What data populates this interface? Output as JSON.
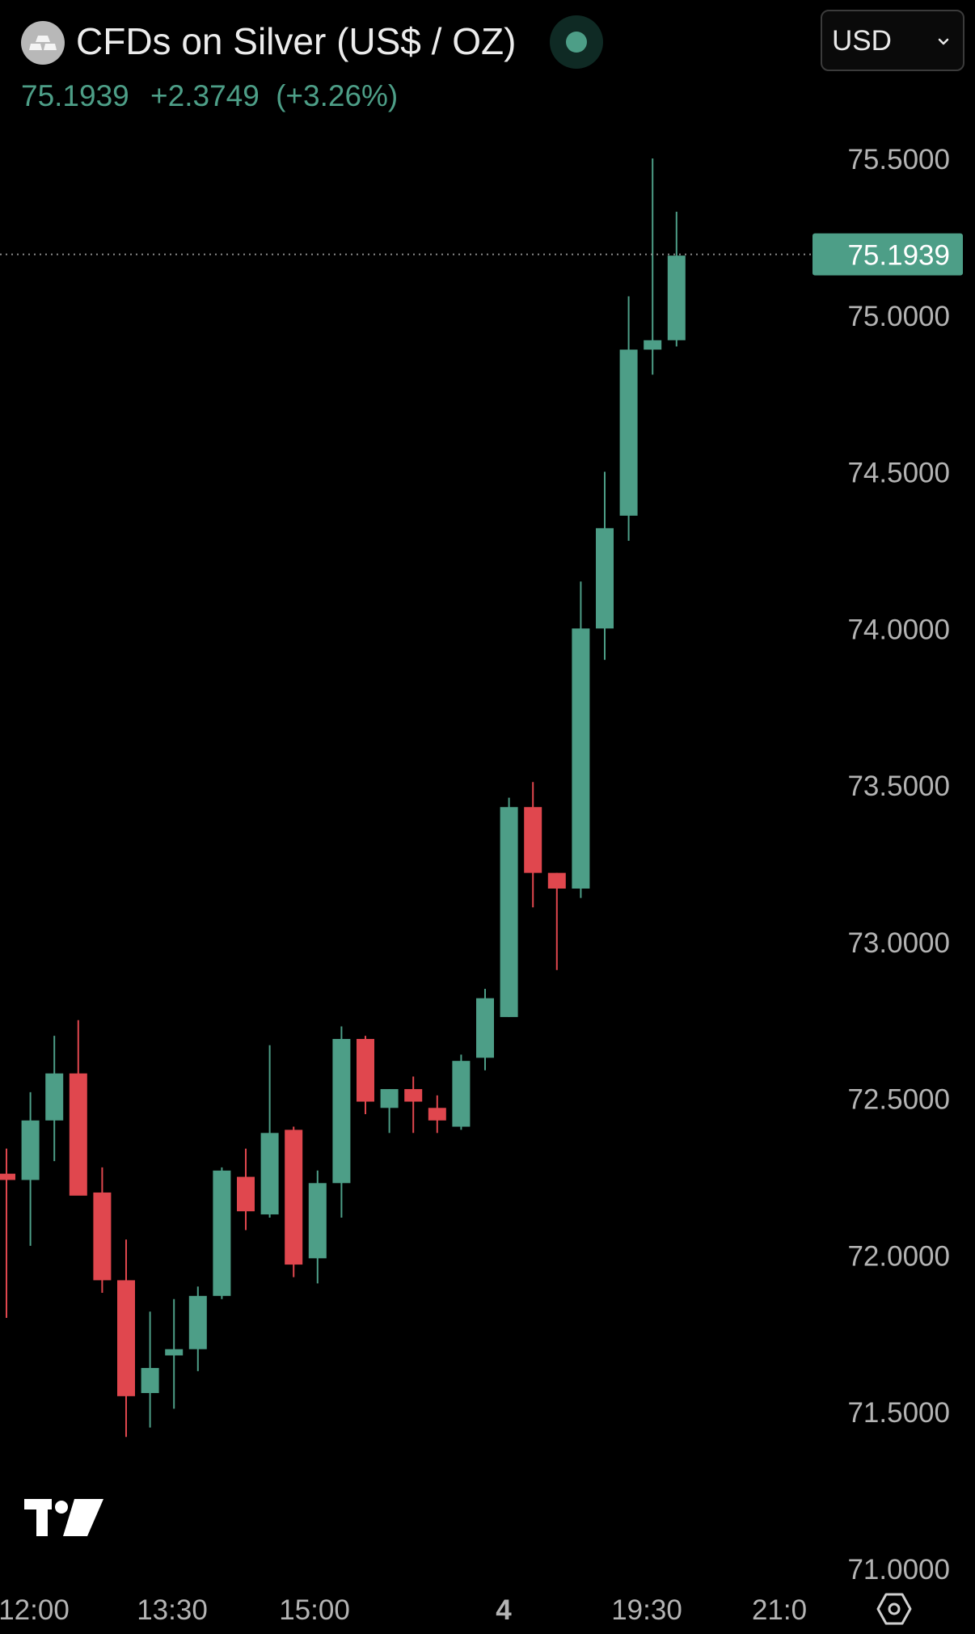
{
  "header": {
    "title": "CFDs on Silver (US$ / OZ)",
    "last_price": "75.1939",
    "change": "+2.3749",
    "change_pct": "(+3.26%)",
    "currency": "USD",
    "status_color": "#4d9e87"
  },
  "icons": {
    "symbol_logo": "silver-bars-icon",
    "currency_chevron": "chevron-down-icon",
    "settings": "settings-icon",
    "brand_logo": "tradingview-logo"
  },
  "colors": {
    "up": "#4d9e87",
    "down": "#e0474e",
    "background": "#000000",
    "axis_text": "#b3b3b3"
  },
  "chart_data": {
    "type": "candlestick",
    "ylim": [
      71.0,
      75.5
    ],
    "y_ticks": [
      "75.5000",
      "75.0000",
      "74.5000",
      "74.0000",
      "73.5000",
      "73.0000",
      "72.5000",
      "72.0000",
      "71.5000",
      "71.0000"
    ],
    "x_ticks": [
      "12:00",
      "13:30",
      "15:00",
      "4",
      "19:30",
      "21:0"
    ],
    "last_price": 75.1939,
    "last_price_label": "75.1939",
    "candles": [
      {
        "open": 72.26,
        "high": 72.34,
        "low": 71.8,
        "close": 72.24
      },
      {
        "open": 72.24,
        "high": 72.52,
        "low": 72.03,
        "close": 72.43
      },
      {
        "open": 72.43,
        "high": 72.7,
        "low": 72.3,
        "close": 72.58
      },
      {
        "open": 72.58,
        "high": 72.75,
        "low": 72.2,
        "close": 72.19
      },
      {
        "open": 72.2,
        "high": 72.28,
        "low": 71.88,
        "close": 71.92
      },
      {
        "open": 71.92,
        "high": 72.05,
        "low": 71.42,
        "close": 71.55
      },
      {
        "open": 71.56,
        "high": 71.82,
        "low": 71.45,
        "close": 71.64
      },
      {
        "open": 71.68,
        "high": 71.86,
        "low": 71.51,
        "close": 71.7
      },
      {
        "open": 71.7,
        "high": 71.9,
        "low": 71.63,
        "close": 71.87
      },
      {
        "open": 71.87,
        "high": 72.28,
        "low": 71.86,
        "close": 72.27
      },
      {
        "open": 72.25,
        "high": 72.34,
        "low": 72.08,
        "close": 72.14
      },
      {
        "open": 72.13,
        "high": 72.67,
        "low": 72.12,
        "close": 72.39
      },
      {
        "open": 72.4,
        "high": 72.41,
        "low": 71.93,
        "close": 71.97
      },
      {
        "open": 71.99,
        "high": 72.27,
        "low": 71.91,
        "close": 72.23
      },
      {
        "open": 72.23,
        "high": 72.73,
        "low": 72.12,
        "close": 72.69
      },
      {
        "open": 72.69,
        "high": 72.7,
        "low": 72.45,
        "close": 72.49
      },
      {
        "open": 72.47,
        "high": 72.53,
        "low": 72.39,
        "close": 72.53
      },
      {
        "open": 72.53,
        "high": 72.57,
        "low": 72.39,
        "close": 72.49
      },
      {
        "open": 72.47,
        "high": 72.51,
        "low": 72.39,
        "close": 72.43
      },
      {
        "open": 72.41,
        "high": 72.64,
        "low": 72.4,
        "close": 72.62
      },
      {
        "open": 72.63,
        "high": 72.85,
        "low": 72.59,
        "close": 72.82
      },
      {
        "open": 72.76,
        "high": 73.46,
        "low": 72.76,
        "close": 73.43
      },
      {
        "open": 73.43,
        "high": 73.51,
        "low": 73.11,
        "close": 73.22
      },
      {
        "open": 73.22,
        "high": 73.22,
        "low": 72.91,
        "close": 73.17
      },
      {
        "open": 73.17,
        "high": 74.15,
        "low": 73.14,
        "close": 74.0
      },
      {
        "open": 74.0,
        "high": 74.5,
        "low": 73.9,
        "close": 74.32
      },
      {
        "open": 74.36,
        "high": 75.06,
        "low": 74.28,
        "close": 74.89
      },
      {
        "open": 74.89,
        "high": 75.5,
        "low": 74.81,
        "close": 74.92
      },
      {
        "open": 74.92,
        "high": 75.33,
        "low": 74.9,
        "close": 75.19
      }
    ]
  }
}
